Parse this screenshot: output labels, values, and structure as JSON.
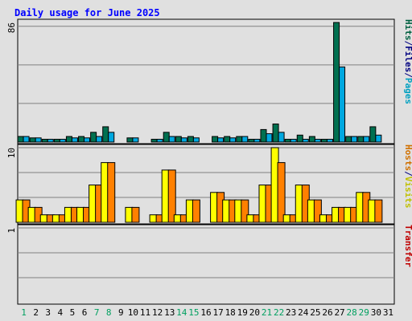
{
  "chart_data": {
    "type": "bar",
    "title": "Daily usage for June 2025",
    "categories": [
      "1",
      "2",
      "3",
      "4",
      "5",
      "6",
      "7",
      "8",
      "9",
      "10",
      "11",
      "12",
      "13",
      "14",
      "15",
      "16",
      "17",
      "18",
      "19",
      "20",
      "21",
      "22",
      "23",
      "24",
      "25",
      "26",
      "27",
      "28",
      "29",
      "30",
      "31"
    ],
    "weekend_days": [
      "1",
      "7",
      "8",
      "14",
      "15",
      "21",
      "22",
      "28",
      "29"
    ],
    "panels": [
      {
        "id": "hits-files-pages",
        "ylabel_parts": [
          {
            "text": "Hits",
            "color": "#006040"
          },
          {
            "text": "/",
            "color": "#000080"
          },
          {
            "text": "Files",
            "color": "#000080"
          },
          {
            "text": "/",
            "color": "#000080"
          },
          {
            "text": "Pages",
            "color": "#00a0c0"
          }
        ],
        "ymax_label": "86",
        "ylim": [
          0,
          86
        ],
        "series": [
          {
            "name": "Hits",
            "color": "#007050",
            "values": [
              4,
              3,
              2,
              2,
              4,
              4,
              7,
              11,
              0,
              3,
              0,
              2,
              7,
              4,
              4,
              0,
              4,
              4,
              4,
              2,
              9,
              13,
              2,
              5,
              4,
              2,
              86,
              4,
              4,
              11,
              0
            ]
          },
          {
            "name": "Files",
            "color": "#00a8e0",
            "values": [
              4,
              3,
              2,
              2,
              3,
              3,
              4,
              7,
              0,
              3,
              0,
              2,
              4,
              3,
              3,
              0,
              3,
              3,
              4,
              2,
              6,
              7,
              2,
              2,
              2,
              2,
              54,
              4,
              4,
              5,
              0
            ]
          },
          {
            "name": "Pages",
            "color": "#00c0d0",
            "values": [
              0,
              0,
              0,
              0,
              0,
              0,
              0,
              0,
              0,
              0,
              0,
              0,
              0,
              0,
              0,
              0,
              0,
              0,
              0,
              0,
              0,
              0,
              0,
              0,
              0,
              0,
              0,
              0,
              0,
              0,
              0
            ]
          }
        ]
      },
      {
        "id": "hosts-visits",
        "ylabel_parts": [
          {
            "text": "Hosts",
            "color": "#d07000"
          },
          {
            "text": "/",
            "color": "#000080"
          },
          {
            "text": "Visits",
            "color": "#c0c000"
          }
        ],
        "ymax_label": "10",
        "ylim": [
          0,
          10
        ],
        "series": [
          {
            "name": "Visits",
            "color": "#ffff00",
            "values": [
              3,
              2,
              1,
              1,
              2,
              2,
              5,
              8,
              0,
              2,
              0,
              1,
              7,
              1,
              3,
              0,
              4,
              3,
              3,
              1,
              5,
              10,
              1,
              5,
              3,
              1,
              2,
              2,
              4,
              3,
              0
            ]
          },
          {
            "name": "Hosts",
            "color": "#ff8000",
            "values": [
              3,
              2,
              1,
              1,
              2,
              2,
              5,
              8,
              0,
              2,
              0,
              1,
              7,
              1,
              3,
              0,
              4,
              3,
              3,
              1,
              5,
              8,
              1,
              5,
              3,
              1,
              2,
              2,
              4,
              3,
              0
            ]
          }
        ]
      },
      {
        "id": "transfer",
        "ylabel_parts": [
          {
            "text": "Transfer",
            "color": "#c00000"
          }
        ],
        "ymax_label": "1",
        "ylim": [
          0,
          1
        ],
        "series": [
          {
            "name": "Transfer",
            "color": "#c00000",
            "values": [
              0,
              0,
              0,
              0,
              0,
              0,
              0,
              0,
              0,
              0,
              0,
              0,
              0,
              0,
              0,
              0,
              0,
              0,
              0,
              0,
              0,
              0,
              0,
              0,
              0,
              0,
              0,
              0,
              0,
              0,
              0
            ]
          }
        ]
      }
    ],
    "colors": {
      "background": "#e0e0e0",
      "plot_background": "#e0e0e0",
      "title": "#0000ff",
      "weekday_label": "#000000",
      "weekend_label": "#00a060",
      "gridline": "#808080",
      "bar_outline": "#000000"
    }
  }
}
